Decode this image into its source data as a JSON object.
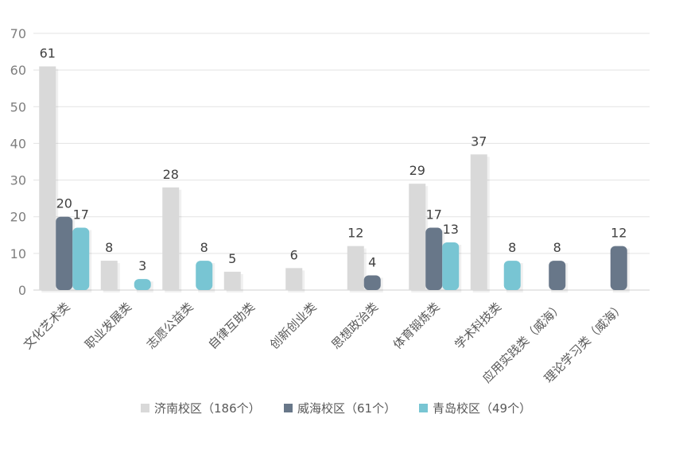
{
  "chart_data": {
    "type": "bar",
    "categories": [
      "文化艺术类",
      "职业发展类",
      "志愿公益类",
      "自律互助类",
      "创新创业类",
      "思想政治类",
      "体育锻炼类",
      "学术科技类",
      "应用实践类（威海）",
      "理论学习类（威海）"
    ],
    "series": [
      {
        "name": "济南校区（186个）",
        "color": "#d9d9d9",
        "values": [
          61,
          8,
          28,
          5,
          6,
          12,
          29,
          37,
          null,
          null
        ]
      },
      {
        "name": "威海校区（61个）",
        "color": "#687789",
        "values": [
          20,
          null,
          null,
          null,
          null,
          4,
          17,
          null,
          8,
          12
        ]
      },
      {
        "name": "青岛校区（49个）",
        "color": "#78c5d3",
        "values": [
          17,
          3,
          8,
          null,
          null,
          null,
          13,
          8,
          null,
          null
        ]
      }
    ],
    "y_ticks": [
      "0",
      "10",
      "20",
      "30",
      "40",
      "50",
      "60",
      "70"
    ],
    "ylim": [
      0,
      70
    ],
    "grid": true,
    "legend_position": "bottom"
  }
}
